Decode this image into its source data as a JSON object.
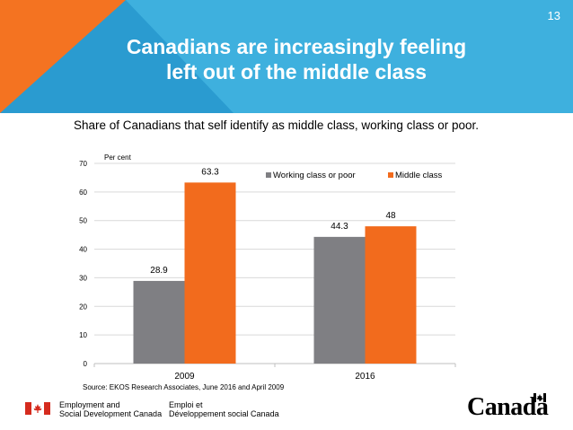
{
  "slide": {
    "number": "13",
    "title_line1": "Canadians are increasingly feeling",
    "title_line2": "left out of the middle class",
    "subtitle": "Share of Canadians that self identify as middle class, working class or poor."
  },
  "colors": {
    "header_blue": "#3eb0de",
    "header_dark_blue": "#2a9bd0",
    "accent_orange": "#f47321",
    "bar_gray": "#7f7f83",
    "bar_orange": "#f26b1d"
  },
  "chart_data": {
    "type": "bar",
    "title": "",
    "ylabel": "Per cent",
    "xlabel": "",
    "ylim": [
      0,
      70
    ],
    "yticks": [
      0,
      10,
      20,
      30,
      40,
      50,
      60,
      70
    ],
    "categories": [
      "2009",
      "2016"
    ],
    "series": [
      {
        "name": "Working class or poor",
        "values": [
          28.9,
          44.3
        ],
        "value_labels": [
          "28.9",
          "44.3"
        ],
        "color": "#7f7f83"
      },
      {
        "name": "Middle class",
        "values": [
          63.3,
          48
        ],
        "value_labels": [
          "63.3",
          "48"
        ],
        "color": "#f26b1d"
      }
    ],
    "legend": "top-right",
    "grid": true
  },
  "source": "Source: EKOS Research Associates, June 2016 and April 2009",
  "footer": {
    "dept_en_line1": "Employment and",
    "dept_en_line2": "Social Development Canada",
    "dept_fr_line1": "Emploi et",
    "dept_fr_line2": "Développement social Canada",
    "wordmark": "Canadä"
  }
}
